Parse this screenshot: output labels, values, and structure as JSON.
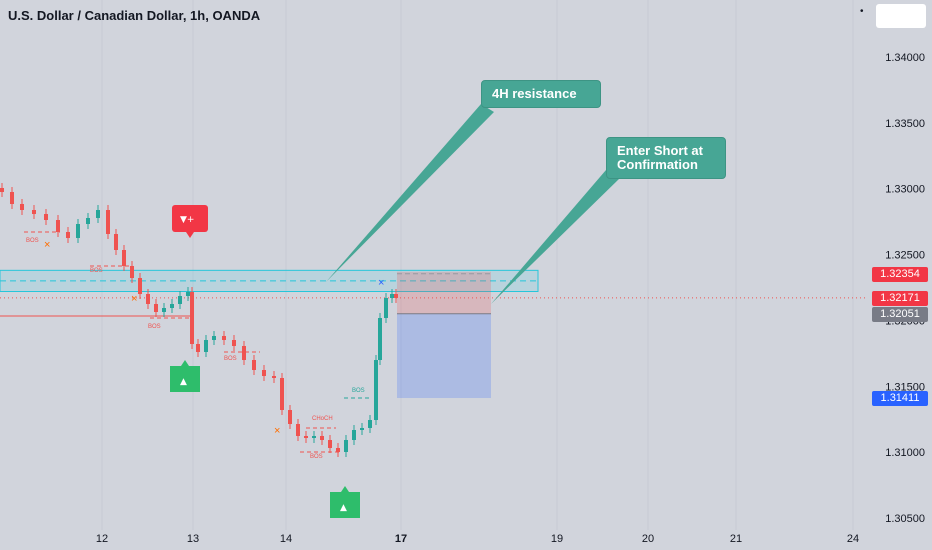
{
  "header": {
    "title": "U.S. Dollar / Canadian Dollar, 1h, OANDA"
  },
  "callouts": {
    "resistance": "4H resistance",
    "enter_short": "Enter Short at Confirmation"
  },
  "structure_labels": {
    "bos": "BOS",
    "choch": "CHoCH"
  },
  "colors": {
    "bull": "#26a69a",
    "bear": "#ef5350",
    "zone": "#2962ff",
    "callout": "#47a695"
  },
  "chart_data": {
    "type": "candlestick",
    "title": "U.S. Dollar / Canadian Dollar, 1h, OANDA",
    "ylim": [
      1.304,
      1.343
    ],
    "y_ticks": [
      "1.34000",
      "1.33500",
      "1.33000",
      "1.32500",
      "1.32000",
      "1.31500",
      "1.31000",
      "1.30500"
    ],
    "y_tick_values": [
      1.34,
      1.335,
      1.33,
      1.325,
      1.32,
      1.315,
      1.31,
      1.305
    ],
    "x_ticks": [
      "12",
      "13",
      "14",
      "17",
      "19",
      "20",
      "21",
      "24"
    ],
    "x_bold": "17",
    "price_labels": [
      {
        "label": "1.32354",
        "value": 1.32354,
        "color": "#f23645"
      },
      {
        "label": "1.32171",
        "value": 1.32171,
        "color": "#f23645"
      },
      {
        "label": "1.32051",
        "value": 1.32051,
        "color": "#787b86"
      },
      {
        "label": "1.31411",
        "value": 1.31411,
        "color": "#2962ff"
      }
    ],
    "resistance_zone": [
      1.3225,
      1.3235
    ],
    "trade": {
      "stop": 1.32354,
      "entry": 1.32171,
      "target": 1.31411,
      "split": 1.32051
    },
    "annotations": [
      "4H resistance",
      "Enter Short at Confirmation"
    ]
  }
}
